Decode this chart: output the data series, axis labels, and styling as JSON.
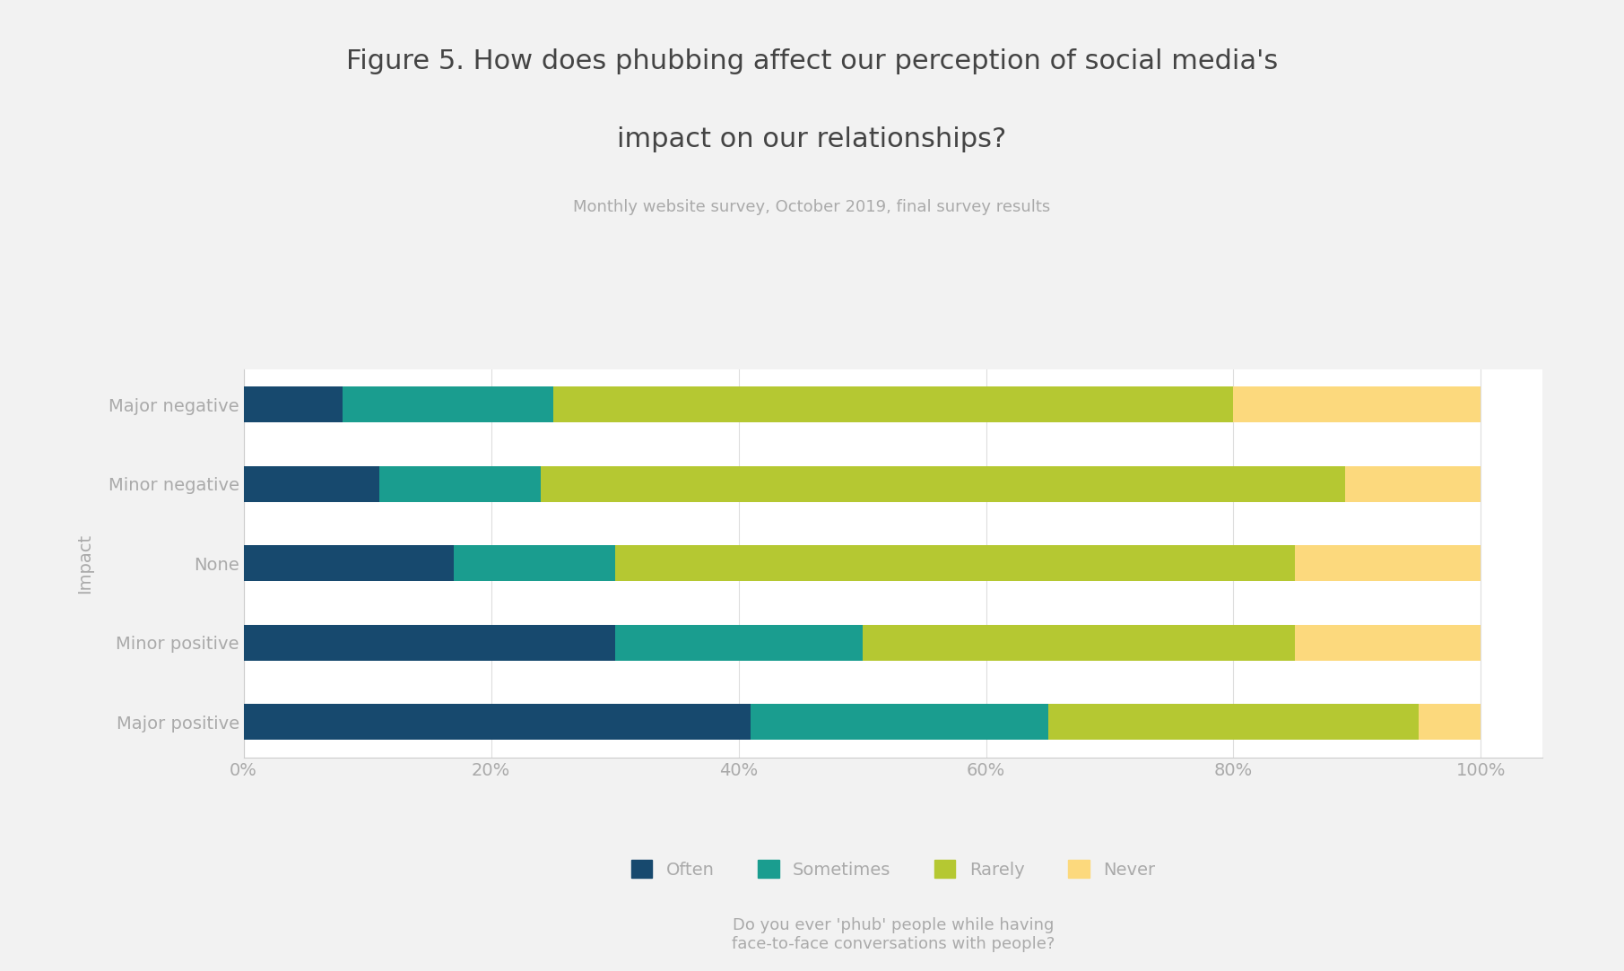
{
  "title_line1": "Figure 5. How does phubbing affect our perception of social media's",
  "title_line2": "impact on our relationships?",
  "subtitle": "Monthly website survey, October 2019, final survey results",
  "categories": [
    "Major negative",
    "Minor negative",
    "None",
    "Minor positive",
    "Major positive"
  ],
  "series": {
    "Often": [
      8,
      11,
      17,
      30,
      41
    ],
    "Sometimes": [
      17,
      13,
      13,
      20,
      24
    ],
    "Rarely": [
      55,
      65,
      55,
      35,
      30
    ],
    "Never": [
      20,
      11,
      15,
      15,
      5
    ]
  },
  "colors": {
    "Often": "#17496e",
    "Sometimes": "#1a9d8f",
    "Rarely": "#b5c832",
    "Never": "#fcd97d"
  },
  "xlabel": "Do you ever 'phub' people while having\nface-to-face conversations with people?",
  "ylabel": "Impact",
  "xtick_labels": [
    "0%",
    "20%",
    "40%",
    "60%",
    "80%",
    "100%"
  ],
  "xtick_values": [
    0,
    20,
    40,
    60,
    80,
    100
  ],
  "background_color": "#f2f2f2",
  "plot_background": "#ffffff",
  "text_color": "#aaaaaa",
  "title_color": "#444444",
  "bar_height": 0.45,
  "legend_labels": [
    "Often",
    "Sometimes",
    "Rarely",
    "Never"
  ]
}
